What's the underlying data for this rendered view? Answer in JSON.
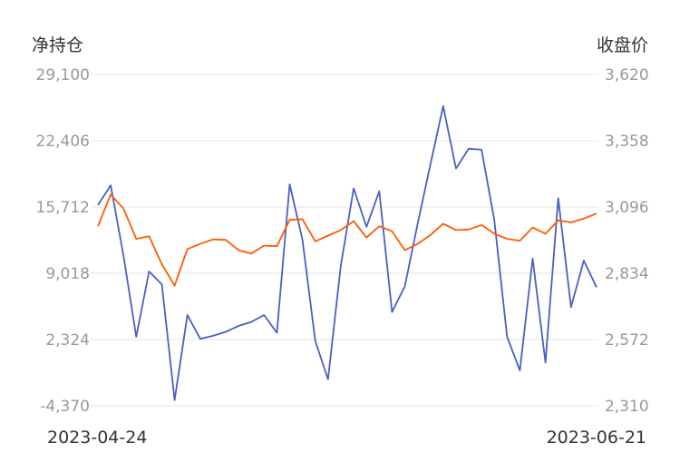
{
  "chart_data": {
    "type": "line",
    "left_axis_title": "净持仓",
    "right_axis_title": "收盘价",
    "left_ticks": [
      "29,100",
      "22,406",
      "15,712",
      "9,018",
      "2,324",
      "-4,370"
    ],
    "right_ticks": [
      "3,620",
      "3,358",
      "3,096",
      "2,834",
      "2,572",
      "2,310"
    ],
    "x_start_label": "2023-04-24",
    "x_end_label": "2023-06-21",
    "ylim_left": [
      -4370,
      29100
    ],
    "ylim_right": [
      2310,
      3620
    ],
    "grid": true,
    "colors": {
      "net_position": "#4a5fc1",
      "close_price": "#ff5a00"
    },
    "series": [
      {
        "key": "net_position",
        "axis": "left",
        "values": [
          15900,
          17900,
          10800,
          2600,
          9200,
          7900,
          -3800,
          4800,
          2400,
          2700,
          3100,
          3700,
          4100,
          4800,
          3000,
          18000,
          12400,
          2200,
          -1700,
          9800,
          17600,
          13700,
          17300,
          5100,
          7700,
          14000,
          20000,
          25900,
          19600,
          21600,
          21500,
          14400,
          2600,
          -800,
          10500,
          0,
          16600,
          5600,
          10300,
          7600
        ]
      },
      {
        "key": "close_price",
        "axis": "right",
        "values": [
          3020,
          3145,
          3090,
          2970,
          2980,
          2870,
          2785,
          2930,
          2950,
          2968,
          2966,
          2925,
          2912,
          2943,
          2941,
          3045,
          3048,
          2960,
          2983,
          3005,
          3040,
          2975,
          3020,
          3000,
          2925,
          2950,
          2985,
          3030,
          3005,
          3007,
          3025,
          2990,
          2970,
          2963,
          3015,
          2990,
          3043,
          3035,
          3050,
          3070
        ]
      }
    ]
  }
}
